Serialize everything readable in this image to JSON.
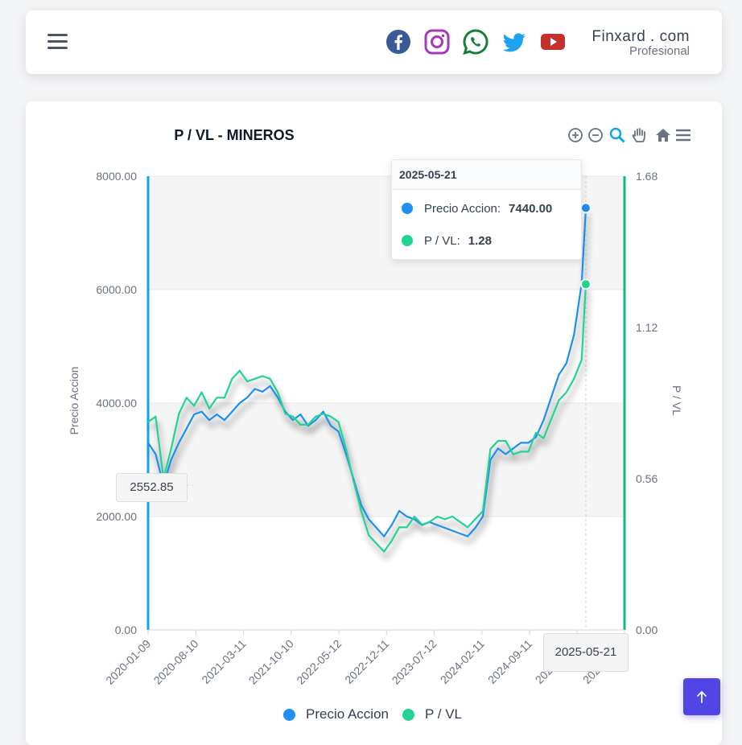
{
  "brand": {
    "name": "Finxard . com",
    "tagline": "Profesional"
  },
  "social": [
    "facebook-icon",
    "instagram-icon",
    "whatsapp-icon",
    "twitter-icon",
    "youtube-icon"
  ],
  "colors": {
    "price": "#1e90f0",
    "pe": "#22d392",
    "accent": "#4f46e5",
    "left_axis": "#0ea5e9",
    "right_axis": "#10b981"
  },
  "chart": {
    "title": "P / VL - MINEROS",
    "toolbar": [
      "zoom-in-icon",
      "zoom-out-icon",
      "zoom-select-icon",
      "pan-hand-icon",
      "reset-home-icon",
      "menu-icon"
    ]
  },
  "tooltip": {
    "date": "2025-05-21",
    "price_label": "Precio Accion:",
    "price_value": "7440.00",
    "pe_label": "P / VL:",
    "pe_value": "1.28"
  },
  "crosshair": {
    "y_label": "2552.85",
    "x_label": "2025-05-21"
  },
  "chart_data": {
    "type": "line",
    "title": "P / VL - MINEROS",
    "xlabel": "",
    "ylabel_left": "Precio Accion",
    "ylabel_right": "P / VL",
    "ylim_left": [
      0,
      8000
    ],
    "ylim_right": [
      0,
      1.68
    ],
    "yticks_left": [
      "8000.00",
      "6000.00",
      "4000.00",
      "2000.00",
      "0.00"
    ],
    "yticks_right": [
      "1.68",
      "1.12",
      "0.56",
      "0.00"
    ],
    "x_ticks": [
      "2020-01-09",
      "2020-08-10",
      "2021-03-11",
      "2021-10-10",
      "2022-05-12",
      "2022-12-11",
      "2023-07-12",
      "2024-02-11",
      "2024-09-11",
      "2025-04-11",
      "2025-11-10"
    ],
    "x_range": [
      "2020-01-09",
      "2025-11-10"
    ],
    "grid": true,
    "legend": "bottom",
    "series": [
      {
        "name": "Precio Accion",
        "axis": "left",
        "x": [
          "2020-01-09",
          "2020-02-12",
          "2020-03-18",
          "2020-04-21",
          "2020-05-26",
          "2020-06-29",
          "2020-08-02",
          "2020-09-05",
          "2020-10-09",
          "2020-11-12",
          "2020-12-16",
          "2021-01-19",
          "2021-02-22",
          "2021-03-28",
          "2021-05-01",
          "2021-06-04",
          "2021-07-08",
          "2021-08-11",
          "2021-09-14",
          "2021-10-18",
          "2021-11-21",
          "2021-12-25",
          "2022-01-28",
          "2022-03-03",
          "2022-04-06",
          "2022-05-10",
          "2022-06-13",
          "2022-07-17",
          "2022-08-20",
          "2022-09-23",
          "2022-10-27",
          "2022-11-30",
          "2023-01-03",
          "2023-02-06",
          "2023-03-12",
          "2023-04-15",
          "2023-05-19",
          "2023-06-22",
          "2023-07-26",
          "2023-08-29",
          "2023-10-02",
          "2023-11-05",
          "2023-12-09",
          "2024-01-12",
          "2024-02-15",
          "2024-03-20",
          "2024-04-23",
          "2024-05-27",
          "2024-06-30",
          "2024-08-03",
          "2024-09-06",
          "2024-10-10",
          "2024-11-13",
          "2024-12-17",
          "2025-01-20",
          "2025-02-23",
          "2025-03-29",
          "2025-05-02",
          "2025-05-21"
        ],
        "values": [
          3300,
          3100,
          2550,
          3000,
          3300,
          3550,
          3800,
          3850,
          3700,
          3800,
          3700,
          3850,
          4000,
          4100,
          4250,
          4200,
          4300,
          4100,
          3850,
          3700,
          3800,
          3600,
          3700,
          3850,
          3600,
          3500,
          3100,
          2650,
          2200,
          1950,
          1800,
          1650,
          1850,
          2100,
          2000,
          1950,
          1850,
          1900,
          1850,
          1800,
          1750,
          1700,
          1650,
          1800,
          2000,
          3000,
          3200,
          3100,
          3200,
          3300,
          3300,
          3400,
          3700,
          4100,
          4500,
          4700,
          5200,
          6100,
          7440
        ]
      },
      {
        "name": "P / VL",
        "axis": "right",
        "x": [
          "2020-01-09",
          "2020-02-12",
          "2020-03-18",
          "2020-04-21",
          "2020-05-26",
          "2020-06-29",
          "2020-08-02",
          "2020-09-05",
          "2020-10-09",
          "2020-11-12",
          "2020-12-16",
          "2021-01-19",
          "2021-02-22",
          "2021-03-28",
          "2021-05-01",
          "2021-06-04",
          "2021-07-08",
          "2021-08-11",
          "2021-09-14",
          "2021-10-18",
          "2021-11-21",
          "2021-12-25",
          "2022-01-28",
          "2022-03-03",
          "2022-04-06",
          "2022-05-10",
          "2022-06-13",
          "2022-07-17",
          "2022-08-20",
          "2022-09-23",
          "2022-10-27",
          "2022-11-30",
          "2023-01-03",
          "2023-02-06",
          "2023-03-12",
          "2023-04-15",
          "2023-05-19",
          "2023-06-22",
          "2023-07-26",
          "2023-08-29",
          "2023-10-02",
          "2023-11-05",
          "2023-12-09",
          "2024-01-12",
          "2024-02-15",
          "2024-03-20",
          "2024-04-23",
          "2024-05-27",
          "2024-06-30",
          "2024-08-03",
          "2024-09-06",
          "2024-10-10",
          "2024-11-13",
          "2024-12-17",
          "2025-01-20",
          "2025-02-23",
          "2025-03-29",
          "2025-05-02",
          "2025-05-21"
        ],
        "values": [
          0.77,
          0.79,
          0.56,
          0.67,
          0.8,
          0.86,
          0.83,
          0.88,
          0.82,
          0.86,
          0.86,
          0.93,
          0.96,
          0.92,
          0.93,
          0.94,
          0.93,
          0.88,
          0.8,
          0.79,
          0.76,
          0.76,
          0.79,
          0.8,
          0.79,
          0.77,
          0.67,
          0.55,
          0.44,
          0.35,
          0.32,
          0.29,
          0.33,
          0.38,
          0.38,
          0.42,
          0.39,
          0.4,
          0.42,
          0.41,
          0.42,
          0.4,
          0.38,
          0.41,
          0.44,
          0.67,
          0.7,
          0.7,
          0.65,
          0.66,
          0.66,
          0.73,
          0.71,
          0.78,
          0.85,
          0.88,
          0.93,
          1.0,
          1.28
        ]
      }
    ]
  },
  "legend": {
    "price": "Precio Accion",
    "pe": "P / VL"
  },
  "scroll_top_icon": "arrow-up-icon"
}
